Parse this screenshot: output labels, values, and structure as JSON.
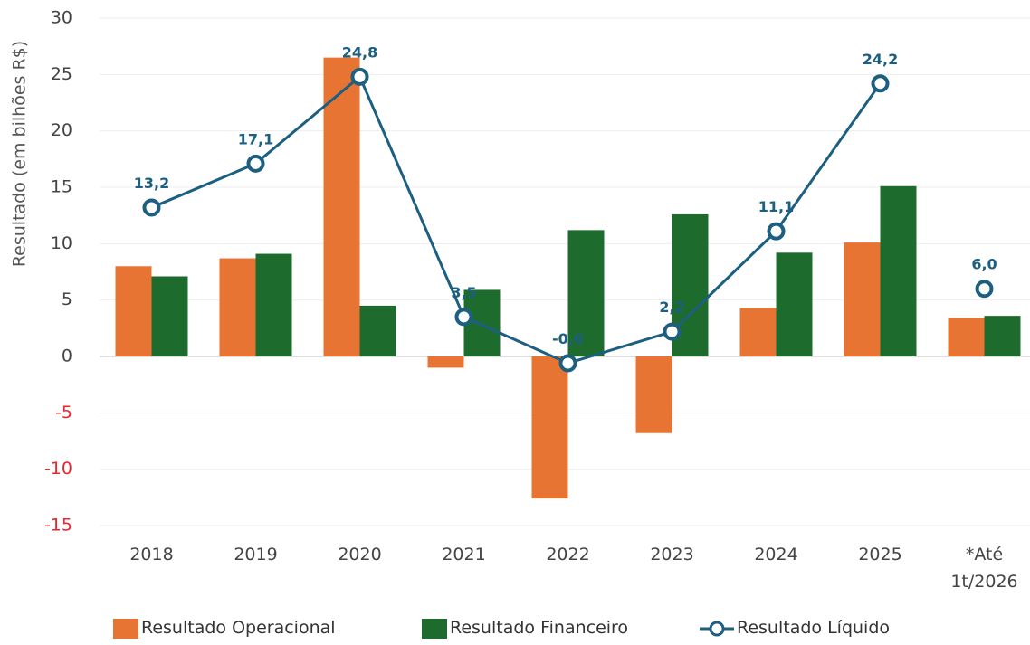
{
  "chart_data": {
    "type": "bar-line",
    "y_axis_label": "Resultado (em bilhões R$)",
    "categories": [
      "2018",
      "2019",
      "2020",
      "2021",
      "2022",
      "2023",
      "2024",
      "2025",
      "*Até\n1t/2026"
    ],
    "series": [
      {
        "name": "Resultado Operacional",
        "type": "bar",
        "color": "#e87434",
        "values": [
          8.0,
          8.7,
          26.5,
          -1.0,
          -12.6,
          -6.8,
          4.3,
          10.1,
          3.4
        ]
      },
      {
        "name": "Resultado Financeiro",
        "type": "bar",
        "color": "#1e6b2e",
        "values": [
          7.1,
          9.1,
          4.5,
          5.9,
          11.2,
          12.6,
          9.2,
          15.1,
          3.6
        ]
      },
      {
        "name": "Resultado Líquido",
        "type": "line",
        "color": "#1c5f80",
        "values": [
          13.2,
          17.1,
          24.8,
          3.5,
          -0.6,
          2.2,
          11.1,
          24.2,
          6.0
        ],
        "value_labels": [
          "13,2",
          "17,1",
          "24,8",
          "3,5",
          "-0,6",
          "2,2",
          "11,1",
          "24,2",
          "6,0"
        ],
        "last_point_unjoined": true
      }
    ],
    "ylim": [
      -15,
      30
    ],
    "yticks": [
      -15,
      -10,
      -5,
      0,
      5,
      10,
      15,
      20,
      25,
      30
    ],
    "negative_tick_color": "#e8262e",
    "grid": true,
    "legend": "bottom"
  }
}
